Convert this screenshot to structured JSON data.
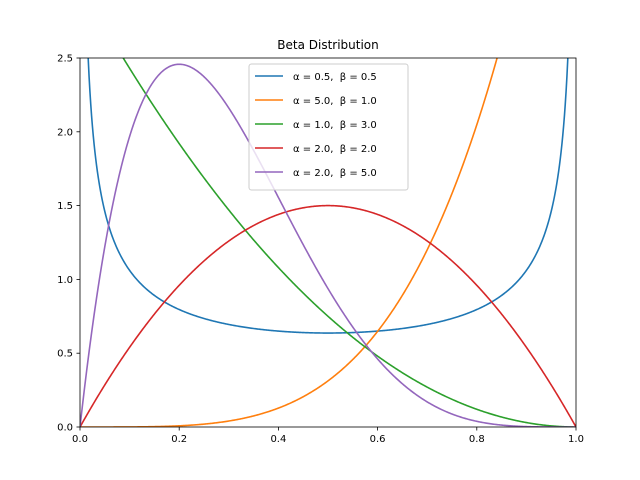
{
  "chart_data": {
    "type": "line",
    "title": "Beta Distribution",
    "xlabel": "",
    "ylabel": "",
    "xlim": [
      0.0,
      1.0
    ],
    "ylim": [
      0.0,
      2.5
    ],
    "x_ticks": [
      "0.0",
      "0.2",
      "0.4",
      "0.6",
      "0.8",
      "1.0"
    ],
    "y_ticks": [
      "0.0",
      "0.5",
      "1.0",
      "1.5",
      "2.0",
      "2.5"
    ],
    "grid": false,
    "legend_position": "top-center",
    "series": [
      {
        "name": "α = 0.5,  β = 0.5",
        "alpha": 0.5,
        "beta": 0.5,
        "color": "#1f77b4"
      },
      {
        "name": "α = 5.0,  β = 1.0",
        "alpha": 5.0,
        "beta": 1.0,
        "color": "#ff7f0e"
      },
      {
        "name": "α = 1.0,  β = 3.0",
        "alpha": 1.0,
        "beta": 3.0,
        "color": "#2ca02c"
      },
      {
        "name": "α = 2.0,  β = 2.0",
        "alpha": 2.0,
        "beta": 2.0,
        "color": "#d62728"
      },
      {
        "name": "α = 2.0,  β = 5.0",
        "alpha": 2.0,
        "beta": 5.0,
        "color": "#9467bd"
      }
    ]
  }
}
